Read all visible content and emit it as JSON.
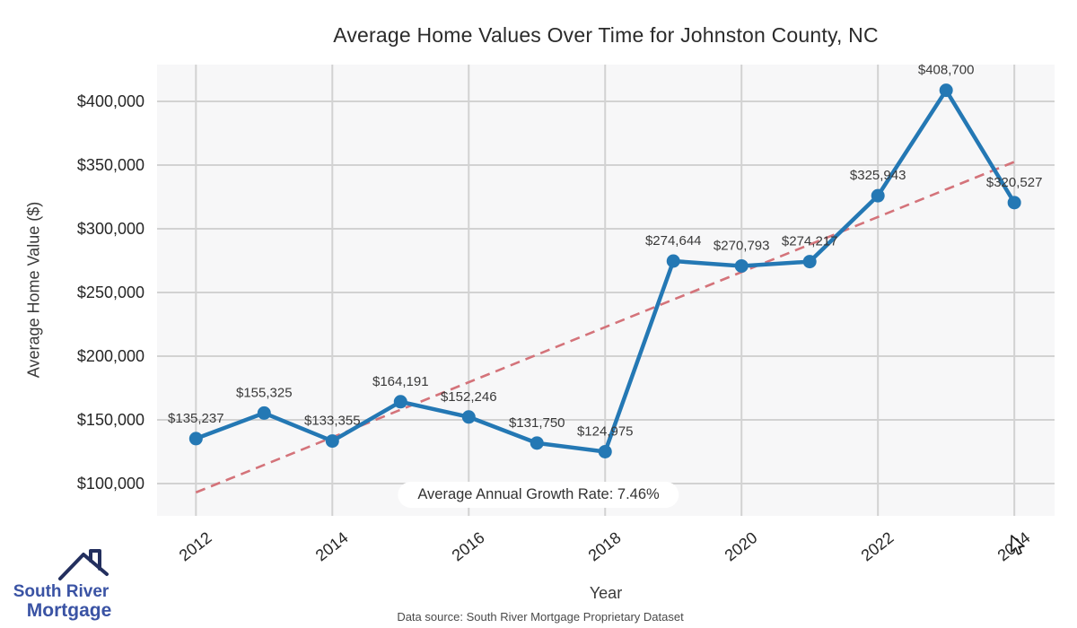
{
  "title": "Average Home Values Over Time for Johnston County, NC",
  "chart_data": {
    "type": "line",
    "x": [
      2012,
      2013,
      2014,
      2015,
      2016,
      2017,
      2018,
      2019,
      2020,
      2021,
      2022,
      2023,
      2024
    ],
    "series": [
      {
        "name": "Average Home Value",
        "color": "#2478b4",
        "values": [
          135237,
          155325,
          133355,
          164191,
          152246,
          131750,
          124975,
          274644,
          270793,
          274217,
          325943,
          408700,
          320527
        ],
        "labels": [
          "$135,237",
          "$155,325",
          "$133,355",
          "$164,191",
          "$152,246",
          "$131,750",
          "$124,975",
          "$274,644",
          "$270,793",
          "$274,217",
          "$325,943",
          "$408,700",
          "$320,527"
        ]
      }
    ],
    "trend_line": {
      "style": "dashed",
      "color": "#d4737a",
      "points": [
        {
          "year": 2012,
          "value": 93000
        },
        {
          "year": 2024,
          "value": 352500
        }
      ]
    },
    "annotation": "Average Annual Growth Rate: 7.46%",
    "xlabel": "Year",
    "ylabel": "Average Home Value ($)",
    "xticks": {
      "values": [
        2012,
        2014,
        2016,
        2018,
        2020,
        2022,
        2024
      ],
      "labels": [
        "2012",
        "2014",
        "2016",
        "2018",
        "2020",
        "2022",
        "2024"
      ]
    },
    "yticks": {
      "values": [
        100000,
        150000,
        200000,
        250000,
        300000,
        350000,
        400000
      ],
      "labels": [
        "$100,000",
        "$150,000",
        "$200,000",
        "$250,000",
        "$300,000",
        "$350,000",
        "$400,000"
      ]
    },
    "xlim": [
      2011.43,
      2024.59
    ],
    "ylim": [
      74600,
      428900
    ],
    "grid": true,
    "legend": "none",
    "plot_bg": "#f7f7f8",
    "grid_color": "#d2d2d2"
  },
  "footer": {
    "data_source": "Data source: South River Mortgage Proprietary Dataset"
  },
  "logo": {
    "line1": "South River",
    "line2": "Mortgage",
    "text_color": "#3a53a4",
    "roof_color": "#232f5e"
  }
}
